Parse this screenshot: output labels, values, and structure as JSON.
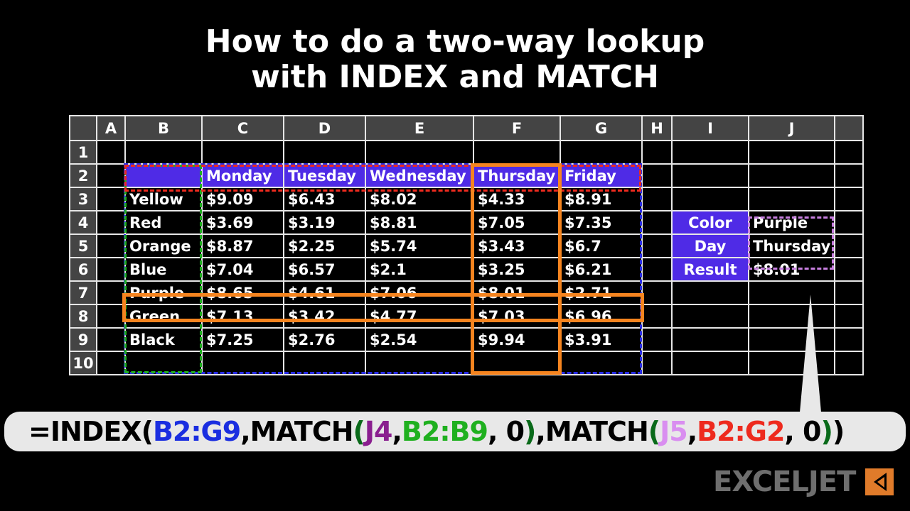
{
  "title": {
    "line1": "How to do a two-way lookup",
    "line2": "with INDEX and MATCH"
  },
  "sheet": {
    "columns": [
      "",
      "A",
      "B",
      "C",
      "D",
      "E",
      "F",
      "G",
      "H",
      "I",
      "J",
      ""
    ],
    "rows": [
      [
        "1",
        "",
        "",
        "",
        "",
        "",
        "",
        "",
        "",
        "",
        "",
        ""
      ],
      [
        "2",
        "",
        "",
        "Monday",
        "Tuesday",
        "Wednesday",
        "Thursday",
        "Friday",
        "",
        "",
        "",
        ""
      ],
      [
        "3",
        "",
        "Yellow",
        "$9.09",
        "$6.43",
        "$8.02",
        "$4.33",
        "$8.91",
        "",
        "",
        "",
        ""
      ],
      [
        "4",
        "",
        "Red",
        "$3.69",
        "$3.19",
        "$8.81",
        "$7.05",
        "$7.35",
        "",
        "Color",
        "Purple",
        ""
      ],
      [
        "5",
        "",
        "Orange",
        "$8.87",
        "$2.25",
        "$5.74",
        "$3.43",
        "$6.7",
        "",
        "Day",
        "Thursday",
        ""
      ],
      [
        "6",
        "",
        "Blue",
        "$7.04",
        "$6.57",
        "$2.1",
        "$3.25",
        "$6.21",
        "",
        "Result",
        "$8.01",
        ""
      ],
      [
        "7",
        "",
        "Purple",
        "$8.65",
        "$4.61",
        "$7.06",
        "$8.01",
        "$2.71",
        "",
        "",
        "",
        ""
      ],
      [
        "8",
        "",
        "Green",
        "$7.13",
        "$3.42",
        "$4.77",
        "$7.03",
        "$6.96",
        "",
        "",
        "",
        ""
      ],
      [
        "9",
        "",
        "Black",
        "$7.25",
        "$2.76",
        "$2.54",
        "$9.94",
        "$3.91",
        "",
        "",
        "",
        ""
      ],
      [
        "10",
        "",
        "",
        "",
        "",
        "",
        "",
        "",
        "",
        "",
        "",
        ""
      ]
    ]
  },
  "formula": {
    "parts": [
      {
        "text": "=INDEX(",
        "color": "#000000"
      },
      {
        "text": "B2:G9",
        "color": "#1a2ee0"
      },
      {
        "text": ",MATCH",
        "color": "#000000"
      },
      {
        "text": "(",
        "color": "#0a6a1a"
      },
      {
        "text": "J4",
        "color": "#8a1f8f"
      },
      {
        "text": ",",
        "color": "#000000"
      },
      {
        "text": "B2:B9",
        "color": "#1fb01f"
      },
      {
        "text": ", 0",
        "color": "#000000"
      },
      {
        "text": ")",
        "color": "#0a6a1a"
      },
      {
        "text": ",MATCH",
        "color": "#000000"
      },
      {
        "text": "(",
        "color": "#0a6a1a"
      },
      {
        "text": "J5",
        "color": "#d98ef0"
      },
      {
        "text": ",",
        "color": "#000000"
      },
      {
        "text": "B2:G2",
        "color": "#ee2a1e"
      },
      {
        "text": ", 0",
        "color": "#000000"
      },
      {
        "text": ")",
        "color": "#0a6a1a"
      },
      {
        "text": ")",
        "color": "#000000"
      }
    ]
  },
  "colors": {
    "header_fill": "#4f2be6",
    "highlight": "#f5841f",
    "range_blue": "#2a2ee8",
    "range_red": "#ee2a1e",
    "range_green": "#1fb01f",
    "range_purple": "#c77fe0"
  },
  "logo": {
    "text": "EXCELJET"
  }
}
